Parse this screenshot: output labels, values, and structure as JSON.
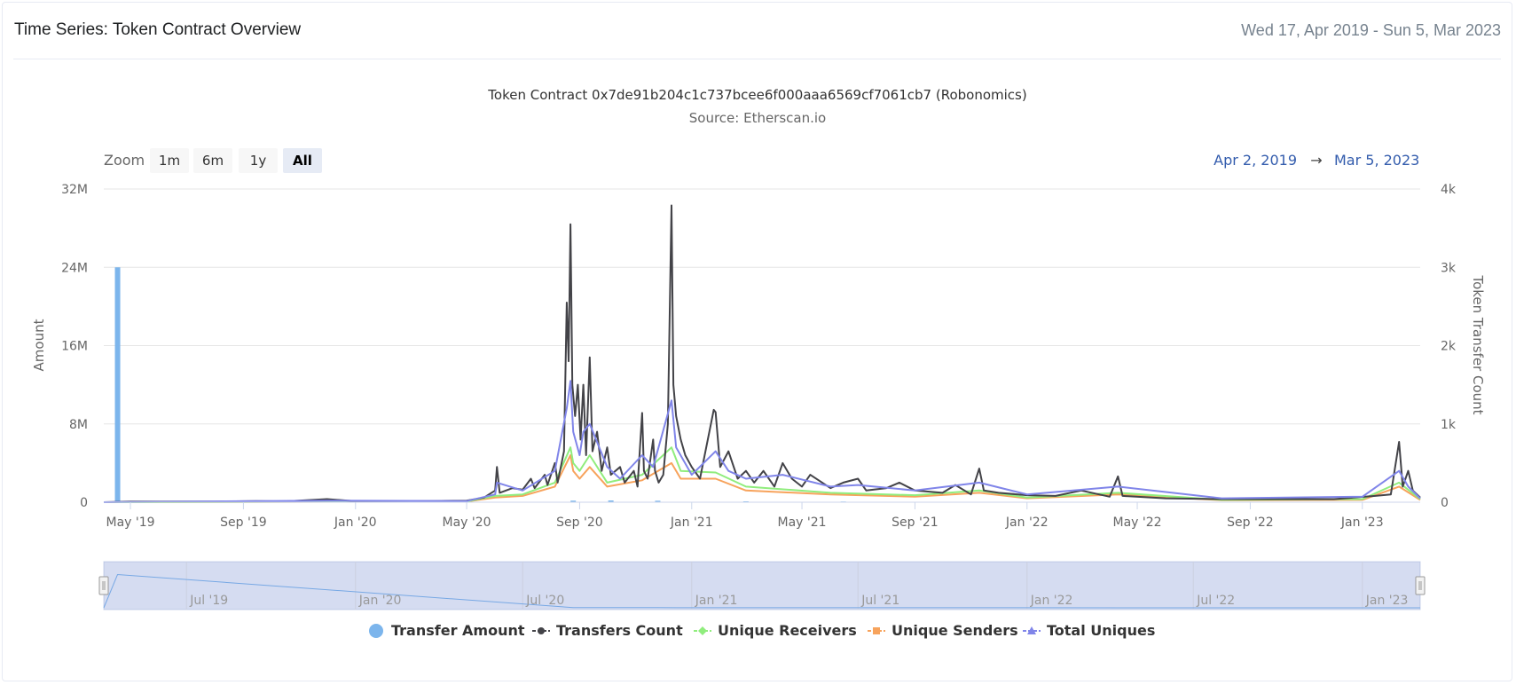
{
  "header": {
    "title": "Time Series: Token Contract Overview",
    "date_range": "Wed 17, Apr 2019 - Sun 5, Mar 2023"
  },
  "chart_data": {
    "type": "line",
    "title": "Token Contract 0x7de91b204c1c737bcee6f000aaa6569cf7061cb7 (Robonomics)",
    "subtitle": "Source: Etherscan.io",
    "x_range": [
      "2019-04-02",
      "2023-03-05"
    ],
    "x_ticks": [
      "May '19",
      "Sep '19",
      "Jan '20",
      "May '20",
      "Sep '20",
      "Jan '21",
      "May '21",
      "Sep '21",
      "Jan '22",
      "May '22",
      "Sep '22",
      "Jan '23"
    ],
    "x_tick_dates": [
      "2019-05-01",
      "2019-09-01",
      "2020-01-01",
      "2020-05-01",
      "2020-09-01",
      "2021-01-01",
      "2021-05-01",
      "2021-09-01",
      "2022-01-01",
      "2022-05-01",
      "2022-09-01",
      "2023-01-01"
    ],
    "y_left": {
      "label": "Amount",
      "ticks": [
        "0",
        "8M",
        "16M",
        "24M",
        "32M"
      ],
      "range": [
        0,
        32000000
      ]
    },
    "y_right": {
      "label": "Token Transfer Count",
      "ticks": [
        "0",
        "1k",
        "2k",
        "3k",
        "4k"
      ],
      "range": [
        0,
        4000
      ]
    },
    "grid": true,
    "legend_position": "bottom",
    "zoom": {
      "label": "Zoom",
      "buttons": [
        "1m",
        "6m",
        "1y",
        "All"
      ],
      "active": "All",
      "from": "Apr 2, 2019",
      "arrow": "→",
      "to": "Mar 5, 2023"
    },
    "navigator_ticks": [
      "Jul '19",
      "Jan '20",
      "Jul '20",
      "Jan '21",
      "Jul '21",
      "Jan '22",
      "Jul '22",
      "Jan '23"
    ],
    "navigator_tick_dates": [
      "2019-07-01",
      "2020-01-01",
      "2020-07-01",
      "2021-01-01",
      "2021-07-01",
      "2022-01-01",
      "2022-07-01",
      "2023-01-01"
    ],
    "series": [
      {
        "name": "Transfer Amount",
        "type": "column",
        "axis": "left",
        "color": "#7cb5ec",
        "marker": "circle",
        "points": [
          [
            "2019-04-17",
            24000000
          ],
          [
            "2020-08-25",
            160000
          ],
          [
            "2020-10-05",
            180000
          ],
          [
            "2020-11-25",
            150000
          ],
          [
            "2021-03-01",
            90000
          ],
          [
            "2021-06-15",
            70000
          ]
        ]
      },
      {
        "name": "Transfers Count",
        "type": "line",
        "axis": "right",
        "color": "#434348",
        "marker": "circle",
        "points": [
          [
            "2019-04-02",
            0
          ],
          [
            "2019-05-01",
            8
          ],
          [
            "2019-08-01",
            8
          ],
          [
            "2019-09-15",
            15
          ],
          [
            "2019-10-15",
            10
          ],
          [
            "2019-12-01",
            40
          ],
          [
            "2020-01-01",
            12
          ],
          [
            "2020-03-01",
            12
          ],
          [
            "2020-05-01",
            20
          ],
          [
            "2020-05-20",
            60
          ],
          [
            "2020-06-01",
            150
          ],
          [
            "2020-06-03",
            450
          ],
          [
            "2020-06-06",
            120
          ],
          [
            "2020-06-20",
            180
          ],
          [
            "2020-07-01",
            160
          ],
          [
            "2020-07-10",
            300
          ],
          [
            "2020-07-14",
            180
          ],
          [
            "2020-07-25",
            350
          ],
          [
            "2020-07-28",
            220
          ],
          [
            "2020-08-05",
            500
          ],
          [
            "2020-08-08",
            250
          ],
          [
            "2020-08-15",
            650
          ],
          [
            "2020-08-18",
            2550
          ],
          [
            "2020-08-20",
            1800
          ],
          [
            "2020-08-22",
            3550
          ],
          [
            "2020-08-24",
            1500
          ],
          [
            "2020-08-27",
            1100
          ],
          [
            "2020-08-30",
            1500
          ],
          [
            "2020-09-02",
            800
          ],
          [
            "2020-09-05",
            1500
          ],
          [
            "2020-09-08",
            600
          ],
          [
            "2020-09-12",
            1850
          ],
          [
            "2020-09-15",
            650
          ],
          [
            "2020-09-20",
            900
          ],
          [
            "2020-09-25",
            400
          ],
          [
            "2020-10-01",
            700
          ],
          [
            "2020-10-05",
            350
          ],
          [
            "2020-10-15",
            450
          ],
          [
            "2020-10-20",
            250
          ],
          [
            "2020-10-30",
            400
          ],
          [
            "2020-11-03",
            200
          ],
          [
            "2020-11-08",
            1140
          ],
          [
            "2020-11-10",
            400
          ],
          [
            "2020-11-14",
            300
          ],
          [
            "2020-11-20",
            800
          ],
          [
            "2020-11-22",
            400
          ],
          [
            "2020-11-26",
            250
          ],
          [
            "2020-12-01",
            350
          ],
          [
            "2020-12-06",
            1000
          ],
          [
            "2020-12-10",
            3790
          ],
          [
            "2020-12-12",
            1500
          ],
          [
            "2020-12-15",
            1100
          ],
          [
            "2020-12-20",
            800
          ],
          [
            "2020-12-25",
            600
          ],
          [
            "2021-01-01",
            450
          ],
          [
            "2021-01-10",
            300
          ],
          [
            "2021-01-25",
            1180
          ],
          [
            "2021-01-27",
            1150
          ],
          [
            "2021-02-01",
            450
          ],
          [
            "2021-02-10",
            650
          ],
          [
            "2021-02-20",
            300
          ],
          [
            "2021-03-01",
            400
          ],
          [
            "2021-03-10",
            250
          ],
          [
            "2021-03-20",
            400
          ],
          [
            "2021-04-01",
            200
          ],
          [
            "2021-04-10",
            500
          ],
          [
            "2021-04-20",
            300
          ],
          [
            "2021-05-01",
            200
          ],
          [
            "2021-05-10",
            350
          ],
          [
            "2021-06-01",
            180
          ],
          [
            "2021-06-15",
            250
          ],
          [
            "2021-07-01",
            300
          ],
          [
            "2021-07-10",
            150
          ],
          [
            "2021-08-01",
            180
          ],
          [
            "2021-08-15",
            250
          ],
          [
            "2021-09-01",
            150
          ],
          [
            "2021-10-01",
            120
          ],
          [
            "2021-10-15",
            220
          ],
          [
            "2021-11-01",
            100
          ],
          [
            "2021-11-10",
            430
          ],
          [
            "2021-11-15",
            150
          ],
          [
            "2021-12-01",
            120
          ],
          [
            "2022-01-01",
            90
          ],
          [
            "2022-02-01",
            80
          ],
          [
            "2022-03-01",
            150
          ],
          [
            "2022-04-01",
            70
          ],
          [
            "2022-04-10",
            330
          ],
          [
            "2022-04-15",
            80
          ],
          [
            "2022-06-01",
            50
          ],
          [
            "2022-08-01",
            40
          ],
          [
            "2022-10-01",
            40
          ],
          [
            "2022-12-01",
            40
          ],
          [
            "2023-01-15",
            80
          ],
          [
            "2023-02-01",
            100
          ],
          [
            "2023-02-10",
            770
          ],
          [
            "2023-02-14",
            200
          ],
          [
            "2023-02-20",
            400
          ],
          [
            "2023-02-25",
            150
          ],
          [
            "2023-03-05",
            60
          ]
        ]
      },
      {
        "name": "Unique Receivers",
        "type": "line",
        "axis": "right",
        "color": "#90ed7d",
        "marker": "diamond",
        "points": [
          [
            "2019-04-02",
            0
          ],
          [
            "2020-05-01",
            10
          ],
          [
            "2020-06-01",
            80
          ],
          [
            "2020-07-01",
            100
          ],
          [
            "2020-08-05",
            250
          ],
          [
            "2020-08-22",
            700
          ],
          [
            "2020-08-25",
            500
          ],
          [
            "2020-09-01",
            400
          ],
          [
            "2020-09-12",
            600
          ],
          [
            "2020-10-01",
            250
          ],
          [
            "2020-11-08",
            350
          ],
          [
            "2020-12-10",
            700
          ],
          [
            "2020-12-20",
            400
          ],
          [
            "2021-01-27",
            380
          ],
          [
            "2021-03-01",
            200
          ],
          [
            "2021-06-01",
            120
          ],
          [
            "2021-09-01",
            90
          ],
          [
            "2021-11-10",
            150
          ],
          [
            "2022-01-01",
            60
          ],
          [
            "2022-04-10",
            120
          ],
          [
            "2022-08-01",
            30
          ],
          [
            "2023-01-01",
            40
          ],
          [
            "2023-02-10",
            250
          ],
          [
            "2023-03-05",
            40
          ]
        ]
      },
      {
        "name": "Unique Senders",
        "type": "line",
        "axis": "right",
        "color": "#f7a35c",
        "marker": "square",
        "points": [
          [
            "2019-04-02",
            0
          ],
          [
            "2020-05-01",
            8
          ],
          [
            "2020-06-01",
            60
          ],
          [
            "2020-07-01",
            80
          ],
          [
            "2020-08-05",
            200
          ],
          [
            "2020-08-22",
            600
          ],
          [
            "2020-08-25",
            400
          ],
          [
            "2020-09-01",
            300
          ],
          [
            "2020-09-12",
            450
          ],
          [
            "2020-10-01",
            200
          ],
          [
            "2020-11-08",
            280
          ],
          [
            "2020-12-10",
            500
          ],
          [
            "2020-12-20",
            300
          ],
          [
            "2021-01-27",
            300
          ],
          [
            "2021-03-01",
            150
          ],
          [
            "2021-06-01",
            100
          ],
          [
            "2021-09-01",
            70
          ],
          [
            "2021-11-10",
            120
          ],
          [
            "2022-01-01",
            50
          ],
          [
            "2022-04-10",
            100
          ],
          [
            "2022-08-01",
            25
          ],
          [
            "2023-01-01",
            30
          ],
          [
            "2023-02-10",
            200
          ],
          [
            "2023-03-05",
            30
          ]
        ]
      },
      {
        "name": "Total Uniques",
        "type": "line",
        "axis": "right",
        "color": "#8085e9",
        "marker": "triangle",
        "points": [
          [
            "2019-04-02",
            0
          ],
          [
            "2019-12-01",
            20
          ],
          [
            "2020-05-01",
            15
          ],
          [
            "2020-06-01",
            100
          ],
          [
            "2020-06-03",
            250
          ],
          [
            "2020-07-01",
            150
          ],
          [
            "2020-08-05",
            400
          ],
          [
            "2020-08-18",
            1200
          ],
          [
            "2020-08-22",
            1550
          ],
          [
            "2020-08-25",
            900
          ],
          [
            "2020-09-01",
            600
          ],
          [
            "2020-09-05",
            900
          ],
          [
            "2020-09-12",
            1000
          ],
          [
            "2020-10-01",
            450
          ],
          [
            "2020-10-15",
            300
          ],
          [
            "2020-11-08",
            600
          ],
          [
            "2020-11-20",
            450
          ],
          [
            "2020-12-10",
            1300
          ],
          [
            "2020-12-15",
            700
          ],
          [
            "2021-01-01",
            350
          ],
          [
            "2021-01-27",
            650
          ],
          [
            "2021-02-10",
            400
          ],
          [
            "2021-03-01",
            300
          ],
          [
            "2021-04-10",
            350
          ],
          [
            "2021-06-01",
            200
          ],
          [
            "2021-07-01",
            220
          ],
          [
            "2021-09-01",
            150
          ],
          [
            "2021-11-10",
            250
          ],
          [
            "2022-01-01",
            100
          ],
          [
            "2022-04-10",
            200
          ],
          [
            "2022-08-01",
            50
          ],
          [
            "2023-01-01",
            70
          ],
          [
            "2023-02-10",
            400
          ],
          [
            "2023-02-20",
            200
          ],
          [
            "2023-03-05",
            50
          ]
        ]
      }
    ]
  }
}
